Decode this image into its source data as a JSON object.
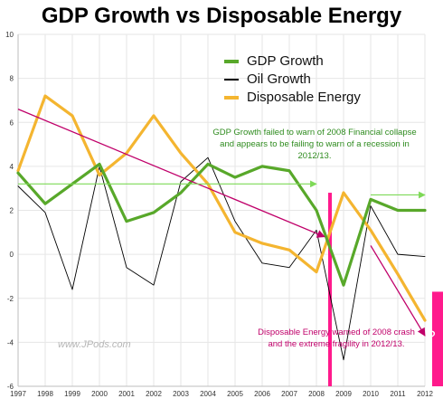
{
  "chart_data": {
    "type": "line",
    "title": "GDP Growth vs Disposable Energy",
    "xlabel": "",
    "ylabel": "",
    "categories": [
      "1997",
      "1998",
      "1999",
      "2000",
      "2001",
      "2002",
      "2003",
      "2004",
      "2005",
      "2006",
      "2007",
      "2008",
      "2009",
      "2010",
      "2011",
      "2012"
    ],
    "ylim": [
      -6,
      10
    ],
    "yticks": [
      "-6",
      "-4",
      "-2",
      "0",
      "2",
      "4",
      "6",
      "8",
      "10"
    ],
    "grid": true,
    "legend_position": "top-right",
    "series": [
      {
        "name": "GDP Growth",
        "color": "#58a82a",
        "values": [
          3.7,
          2.3,
          3.2,
          4.1,
          1.5,
          1.9,
          2.8,
          4.1,
          3.5,
          4.0,
          3.8,
          2.0,
          -1.4,
          2.5,
          2.0,
          2.0
        ]
      },
      {
        "name": "Oil Growth",
        "color": "#000000",
        "values": [
          3.1,
          1.9,
          -1.6,
          4.0,
          -0.6,
          -1.4,
          3.3,
          4.4,
          1.5,
          -0.4,
          -0.6,
          1.1,
          -4.8,
          2.2,
          0.0,
          -0.1
        ]
      },
      {
        "name": "Disposable Energy",
        "color": "#f4b530",
        "values": [
          3.8,
          7.2,
          6.3,
          3.6,
          4.6,
          6.3,
          4.6,
          3.2,
          1.0,
          0.5,
          0.2,
          -0.8,
          2.8,
          1.1,
          -0.9,
          -3.0
        ]
      }
    ],
    "annotations": [
      {
        "text_line1": "GDP Growth failed to warn of 2008 Financial collapse",
        "text_line2": "and appears to be failing to warn of a recession in 2012/13.",
        "color": "#2e8b1e"
      },
      {
        "text_line1": "Disposable Energy warned of 2008 crash",
        "text_line2": "and the extreme fragility in 2012/13.",
        "color": "#c0006a"
      }
    ],
    "arrows": [
      {
        "color": "#c0006a",
        "from": [
          1997,
          6.6
        ],
        "to": [
          2008.3,
          0.8
        ]
      },
      {
        "color": "#c0006a",
        "from": [
          2010,
          0.4
        ],
        "to": [
          2012,
          -3.7
        ]
      },
      {
        "color": "#7ed957",
        "from": [
          1997,
          3.2
        ],
        "to": [
          2008,
          3.2
        ]
      },
      {
        "color": "#7ed957",
        "from": [
          2010,
          2.7
        ],
        "to": [
          2012,
          2.7
        ]
      }
    ],
    "markers": [
      {
        "type": "vertical-bar",
        "x": 2008.5,
        "color": "#ff1a8c"
      },
      {
        "type": "block",
        "x": 2012.3,
        "from": -1.7,
        "to": -6.0,
        "color": "#ff1a8c",
        "label": "?"
      }
    ],
    "watermark": "www.JPods.com"
  }
}
